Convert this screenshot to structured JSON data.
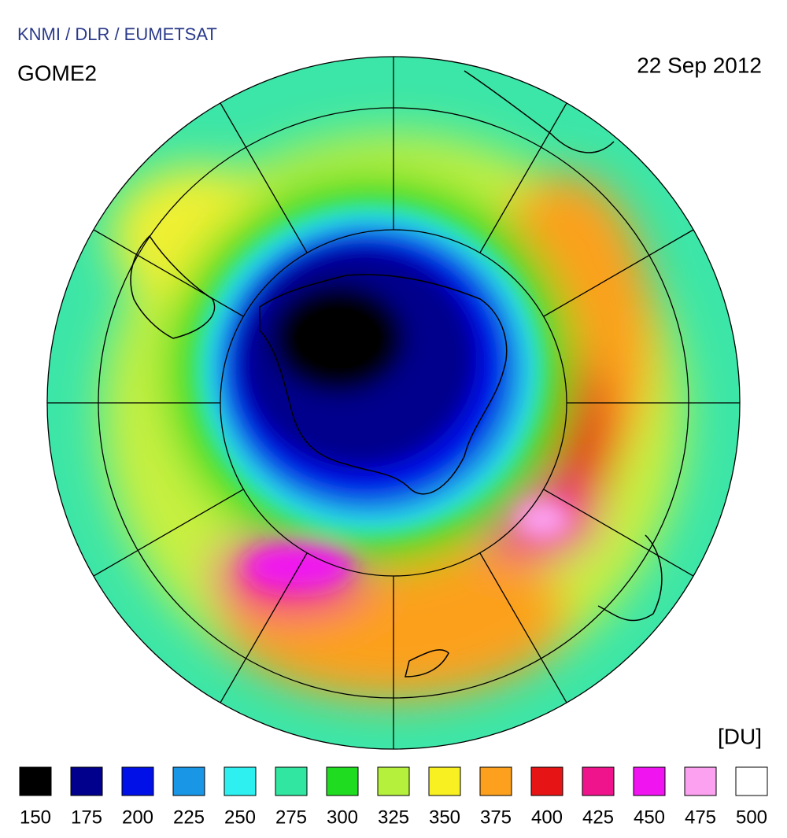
{
  "header": {
    "source": "KNMI / DLR / EUMETSAT",
    "instrument": "GOME2",
    "date": "22 Sep 2012"
  },
  "legend": {
    "unit": "[DU]",
    "items": [
      {
        "value": 150,
        "color": "#000000"
      },
      {
        "value": 175,
        "color": "#00008c"
      },
      {
        "value": 200,
        "color": "#0010e6"
      },
      {
        "value": 225,
        "color": "#1a96e6"
      },
      {
        "value": 250,
        "color": "#2ef0f0"
      },
      {
        "value": 275,
        "color": "#30e6a0"
      },
      {
        "value": 300,
        "color": "#20dc20"
      },
      {
        "value": 325,
        "color": "#b4f03c"
      },
      {
        "value": 350,
        "color": "#f8f020"
      },
      {
        "value": 375,
        "color": "#fca01e"
      },
      {
        "value": 400,
        "color": "#e61414"
      },
      {
        "value": 425,
        "color": "#f0148c"
      },
      {
        "value": 450,
        "color": "#f014f0"
      },
      {
        "value": 475,
        "color": "#fca0f0"
      },
      {
        "value": 500,
        "color": "#ffffff"
      }
    ]
  }
}
